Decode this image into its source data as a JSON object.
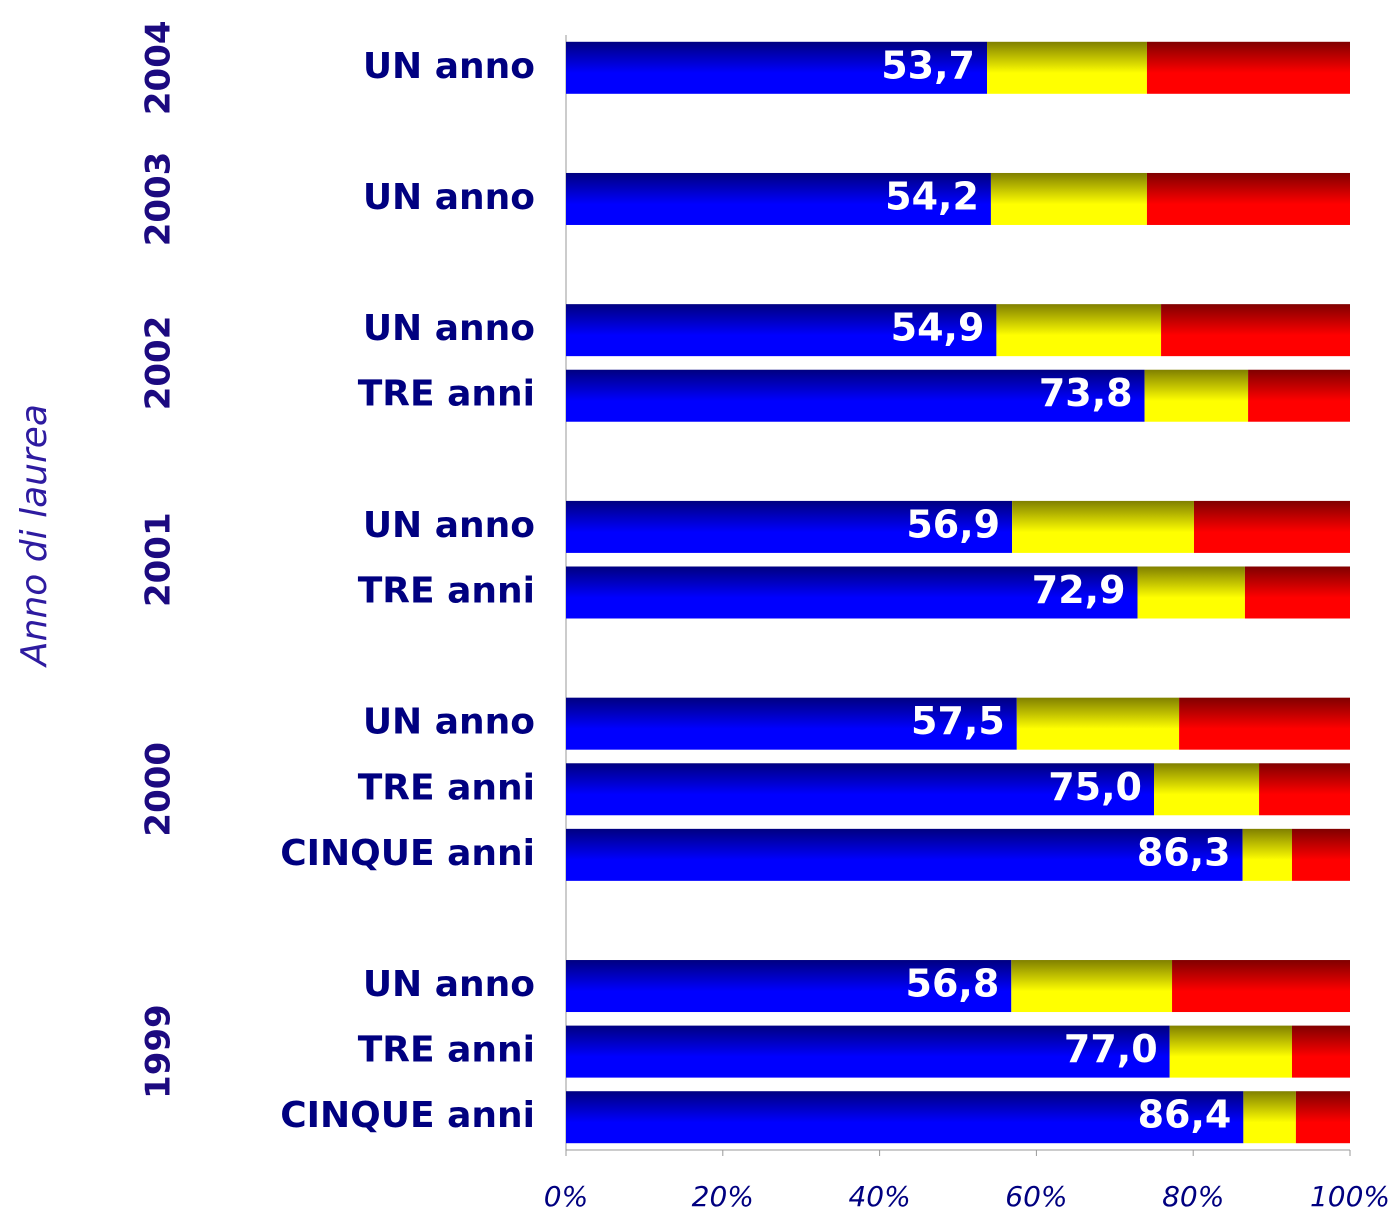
{
  "chart_data": {
    "type": "stacked_bar_100",
    "y_label": "Anno di laurea",
    "groups": [
      {
        "name": "2004",
        "categories": [
          "UN anno"
        ]
      },
      {
        "name": "2003",
        "categories": [
          "UN anno"
        ]
      },
      {
        "name": "2002",
        "categories": [
          "UN anno",
          "TRE anni"
        ]
      },
      {
        "name": "2001",
        "categories": [
          "UN anno",
          "TRE anni"
        ]
      },
      {
        "name": "2000",
        "categories": [
          "UN anno",
          "TRE anni",
          "CINQUE anni"
        ]
      },
      {
        "name": "1999",
        "categories": [
          "UN anno",
          "TRE anni",
          "CINQUE anni"
        ]
      }
    ],
    "series": [
      {
        "color": "#0000ff",
        "values": [
          53.7,
          54.2,
          54.9,
          73.8,
          56.9,
          72.9,
          57.5,
          75.0,
          86.3,
          56.8,
          77.0,
          86.4
        ],
        "value_labels": [
          "53,7",
          "54,2",
          "54,9",
          "73,8",
          "56,9",
          "72,9",
          "57,5",
          "75,0",
          "86,3",
          "56,8",
          "77,0",
          "86,4"
        ]
      },
      {
        "color": "#ffff00",
        "values": [
          20.4,
          19.9,
          21.0,
          13.2,
          23.2,
          13.7,
          20.7,
          13.4,
          6.3,
          20.5,
          15.6,
          6.7
        ]
      },
      {
        "color": "#ff0000",
        "values": [
          25.9,
          25.9,
          24.1,
          13.0,
          19.9,
          13.4,
          21.8,
          11.6,
          7.4,
          22.7,
          7.4,
          6.9
        ]
      }
    ],
    "xlim": [
      0,
      100
    ],
    "xticks": [
      {
        "value": 0,
        "label": "0%"
      },
      {
        "value": 20,
        "label": "20%"
      },
      {
        "value": 40,
        "label": "40%"
      },
      {
        "value": 60,
        "label": "60%"
      },
      {
        "value": 80,
        "label": "80%"
      },
      {
        "value": 100,
        "label": "100%"
      }
    ]
  }
}
